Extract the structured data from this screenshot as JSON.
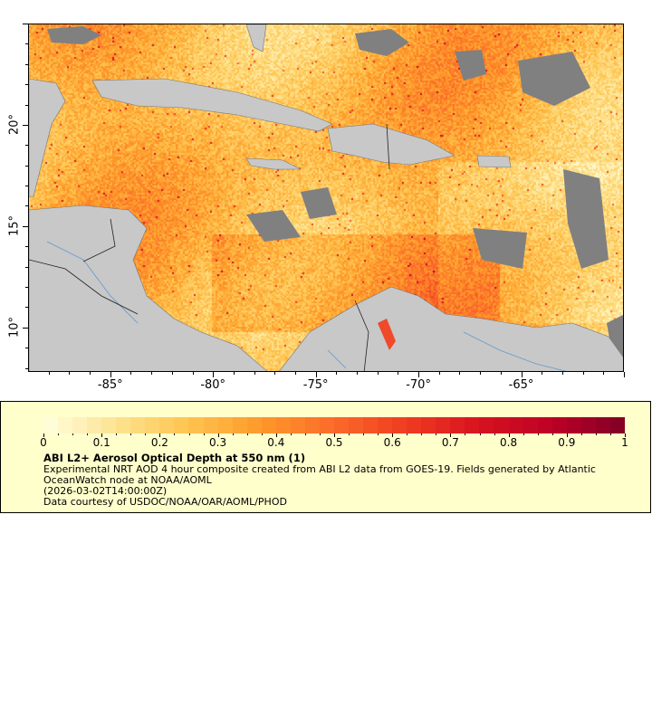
{
  "map": {
    "lon_range": [
      -89,
      -60
    ],
    "lat_range": [
      7.8,
      25
    ],
    "lon_ticks": [
      "-85°",
      "-80°",
      "-75°",
      "-70°",
      "-65°"
    ],
    "lat_ticks": [
      "20°",
      "15°",
      "10°"
    ],
    "land_color": "#c8c8c8",
    "nodata_color": "#808080",
    "river_color": "#6699cc"
  },
  "legend": {
    "colorbar_ticks": [
      "0",
      "0.1",
      "0.2",
      "0.3",
      "0.4",
      "0.5",
      "0.6",
      "0.7",
      "0.8",
      "0.9",
      "1"
    ],
    "colorbar_range": [
      0,
      1
    ],
    "colormap_stops": [
      "#ffffe0",
      "#fee391",
      "#fec44f",
      "#fe9929",
      "#fb6a2a",
      "#f03b20",
      "#d7131f",
      "#bd0026",
      "#800026"
    ],
    "title": "ABI L2+ Aerosol Optical Depth at 550 nm (1)",
    "line1": "Experimental NRT AOD 4 hour composite created from ABI L2 data from GOES-19. Fields generated by Atlantic OceanWatch node at NOAA/AOML",
    "time": "(2026-03-02T14:00:00Z)",
    "credit": "Data courtesy of USDOC/NOAA/OAR/AOML/PHOD"
  }
}
